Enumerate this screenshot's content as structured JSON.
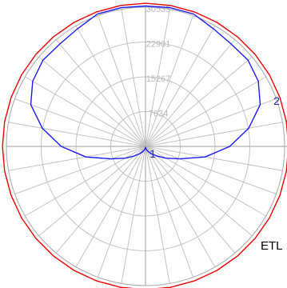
{
  "chart_data": {
    "type": "polar",
    "angle_step_deg": 10,
    "ring_values": [
      7634,
      15267,
      22901,
      30535
    ],
    "rmax": 30535,
    "grid": true,
    "series": [
      {
        "name": "1",
        "color": "#1a1aff",
        "angles": [
          180,
          170,
          160,
          150,
          140,
          130,
          120,
          110,
          100,
          90,
          80,
          70,
          60,
          50,
          40,
          30,
          20,
          10,
          0
        ],
        "values": [
          30800,
          30900,
          30900,
          29800,
          29300,
          29400,
          28600,
          26800,
          23000,
          18500,
          13300,
          8000,
          5150,
          3300,
          2170,
          1420,
          900,
          530,
          200
        ]
      },
      {
        "name": "2",
        "color": "#ee0000",
        "angles": [
          180,
          170,
          160,
          150,
          140,
          130,
          120,
          110,
          100,
          90,
          80,
          70,
          60,
          50,
          40,
          30,
          20,
          10,
          0
        ],
        "values": [
          31400,
          31400,
          31400,
          31400,
          31400,
          31400,
          31400,
          31400,
          31400,
          31400,
          31400,
          31400,
          31400,
          31400,
          31400,
          31400,
          31400,
          31400,
          31400
        ]
      }
    ]
  },
  "labels": {
    "series_1": "1",
    "series_2": "2",
    "brand": "ETL"
  },
  "colors": {
    "grid": "#c4c4c4",
    "axis": "#b0b0b0",
    "tick_text": "#b8b8b8",
    "series_label": "#2a2aa8"
  }
}
